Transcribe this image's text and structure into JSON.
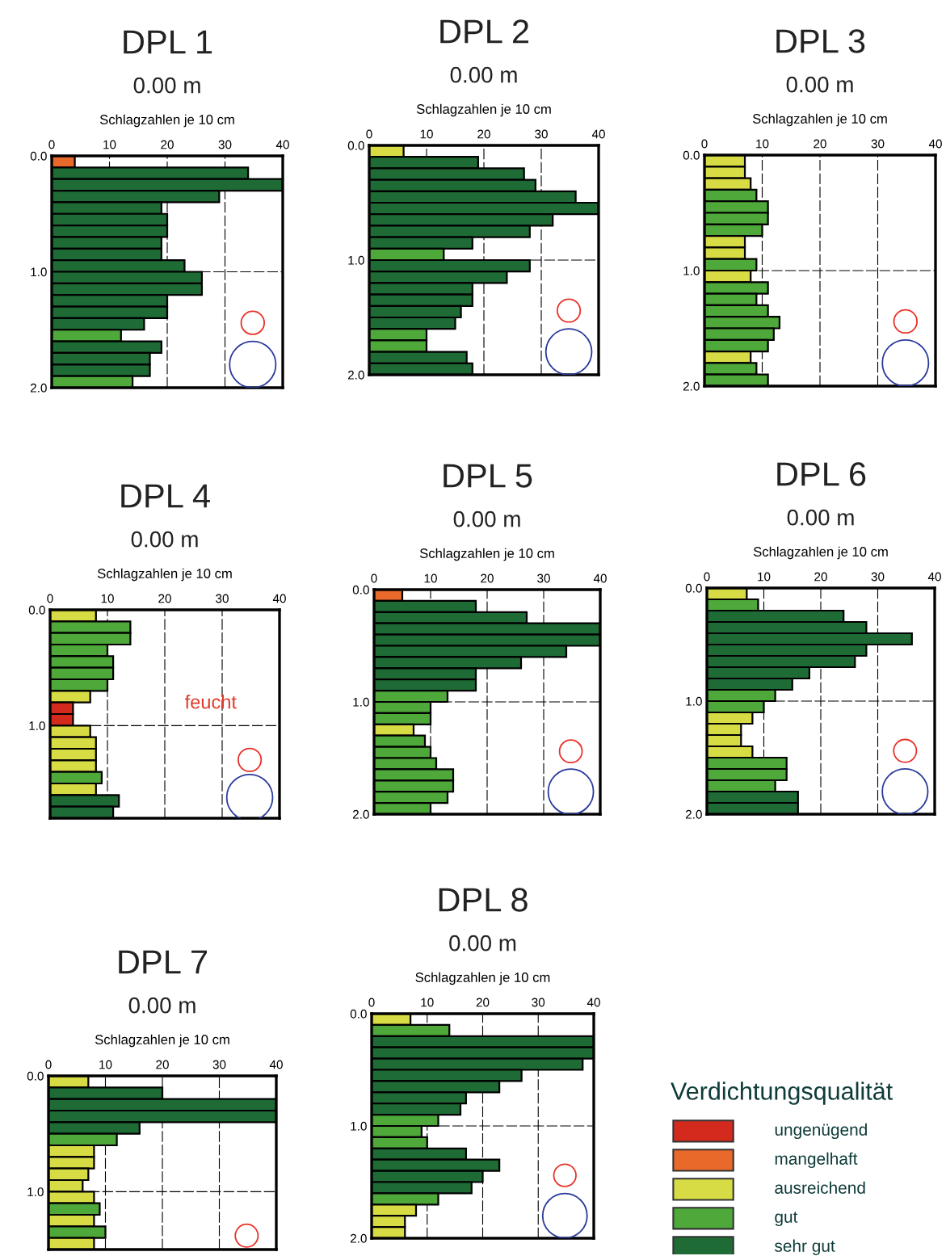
{
  "chart_data": [
    {
      "type": "bar",
      "orientation": "horizontal",
      "title": "DPL 1",
      "subtitle": "0.00 m",
      "xlabel": "Schlagzahlen je 10 cm",
      "grid": true,
      "xlim": [
        0,
        40
      ],
      "xticks": [
        0,
        10,
        20,
        30,
        40
      ],
      "ylim": [
        2.0,
        0.0
      ],
      "yticks": [
        {
          "value": 0,
          "label": "0.0"
        },
        {
          "value": 1,
          "label": "1.0"
        },
        {
          "value": 2,
          "label": "2.0"
        }
      ],
      "x": [
        0.05,
        0.15,
        0.25,
        0.35,
        0.45,
        0.55,
        0.65,
        0.75,
        0.85,
        0.95,
        1.05,
        1.15,
        1.25,
        1.35,
        1.45,
        1.55,
        1.65,
        1.75,
        1.85,
        1.95
      ],
      "values": [
        4,
        34,
        40,
        29,
        19,
        20,
        20,
        19,
        19,
        23,
        26,
        26,
        20,
        20,
        16,
        12,
        19,
        17,
        17,
        14
      ],
      "colors": [
        "#e8692a",
        "#1f6b35",
        "#1f6b35",
        "#1f6b35",
        "#1f6b35",
        "#1f6b35",
        "#1f6b35",
        "#1f6b35",
        "#1f6b35",
        "#1f6b35",
        "#1f6b35",
        "#1f6b35",
        "#1f6b35",
        "#1f6b35",
        "#1f6b35",
        "#4ea83a",
        "#1f6b35",
        "#1f6b35",
        "#1f6b35",
        "#4ea83a"
      ]
    },
    {
      "type": "bar",
      "orientation": "horizontal",
      "title": "DPL 2",
      "subtitle": "0.00 m",
      "xlabel": "Schlagzahlen je 10 cm",
      "grid": true,
      "xlim": [
        0,
        40
      ],
      "xticks": [
        0,
        10,
        20,
        30,
        40
      ],
      "ylim": [
        2.0,
        0.0
      ],
      "yticks": [
        {
          "value": 0,
          "label": "0.0"
        },
        {
          "value": 1,
          "label": "1.0"
        },
        {
          "value": 2,
          "label": "2.0"
        }
      ],
      "x": [
        0.05,
        0.15,
        0.25,
        0.35,
        0.45,
        0.55,
        0.65,
        0.75,
        0.85,
        0.95,
        1.05,
        1.15,
        1.25,
        1.35,
        1.45,
        1.55,
        1.65,
        1.75,
        1.85,
        1.95
      ],
      "values": [
        6,
        19,
        27,
        29,
        36,
        40,
        32,
        28,
        18,
        13,
        28,
        24,
        18,
        18,
        16,
        15,
        10,
        10,
        17,
        18
      ],
      "colors": [
        "#d8dc44",
        "#1f6b35",
        "#1f6b35",
        "#1f6b35",
        "#1f6b35",
        "#1f6b35",
        "#1f6b35",
        "#1f6b35",
        "#1f6b35",
        "#4ea83a",
        "#1f6b35",
        "#1f6b35",
        "#1f6b35",
        "#1f6b35",
        "#1f6b35",
        "#1f6b35",
        "#4ea83a",
        "#4ea83a",
        "#1f6b35",
        "#1f6b35"
      ]
    },
    {
      "type": "bar",
      "orientation": "horizontal",
      "title": "DPL 3",
      "subtitle": "0.00 m",
      "xlabel": "Schlagzahlen je 10 cm",
      "grid": true,
      "xlim": [
        0,
        40
      ],
      "xticks": [
        0,
        10,
        20,
        30,
        40
      ],
      "ylim": [
        2.0,
        0.0
      ],
      "yticks": [
        {
          "value": 0,
          "label": "0.0"
        },
        {
          "value": 1,
          "label": "1.0"
        },
        {
          "value": 2,
          "label": "2.0"
        }
      ],
      "x": [
        0.05,
        0.15,
        0.25,
        0.35,
        0.45,
        0.55,
        0.65,
        0.75,
        0.85,
        0.95,
        1.05,
        1.15,
        1.25,
        1.35,
        1.45,
        1.55,
        1.65,
        1.75,
        1.85,
        1.95
      ],
      "values": [
        7,
        7,
        8,
        9,
        11,
        11,
        10,
        7,
        7,
        9,
        8,
        11,
        9,
        11,
        13,
        12,
        11,
        8,
        9,
        11
      ],
      "colors": [
        "#d8dc44",
        "#d8dc44",
        "#d8dc44",
        "#4ea83a",
        "#4ea83a",
        "#4ea83a",
        "#4ea83a",
        "#d8dc44",
        "#d8dc44",
        "#4ea83a",
        "#d8dc44",
        "#4ea83a",
        "#4ea83a",
        "#4ea83a",
        "#4ea83a",
        "#4ea83a",
        "#4ea83a",
        "#d8dc44",
        "#4ea83a",
        "#4ea83a"
      ]
    },
    {
      "type": "bar",
      "orientation": "horizontal",
      "title": "DPL 4",
      "subtitle": "0.00 m",
      "xlabel": "Schlagzahlen je 10 cm",
      "grid": true,
      "annotations": [
        "feucht"
      ],
      "xlim": [
        0,
        40
      ],
      "xticks": [
        0,
        10,
        20,
        30,
        40
      ],
      "ylim": [
        1.8,
        0.0
      ],
      "yticks": [
        {
          "value": 0,
          "label": "0.0"
        },
        {
          "value": 1,
          "label": "1.0"
        }
      ],
      "x": [
        0.05,
        0.15,
        0.25,
        0.35,
        0.45,
        0.55,
        0.65,
        0.75,
        0.85,
        0.95,
        1.05,
        1.15,
        1.25,
        1.35,
        1.45,
        1.55,
        1.65,
        1.75
      ],
      "values": [
        8,
        14,
        14,
        10,
        11,
        11,
        10,
        7,
        4,
        4,
        7,
        8,
        8,
        8,
        9,
        8,
        12,
        11
      ],
      "colors": [
        "#d8dc44",
        "#4ea83a",
        "#4ea83a",
        "#4ea83a",
        "#4ea83a",
        "#4ea83a",
        "#4ea83a",
        "#d8dc44",
        "#d42a1e",
        "#d42a1e",
        "#d8dc44",
        "#d8dc44",
        "#d8dc44",
        "#d8dc44",
        "#4ea83a",
        "#d8dc44",
        "#1f6b35",
        "#1f6b35"
      ]
    },
    {
      "type": "bar",
      "orientation": "horizontal",
      "title": "DPL 5",
      "subtitle": "0.00 m",
      "xlabel": "Schlagzahlen je 10 cm",
      "grid": true,
      "xlim": [
        0,
        40
      ],
      "xticks": [
        0,
        10,
        20,
        30,
        40
      ],
      "ylim": [
        2.0,
        0.0
      ],
      "yticks": [
        {
          "value": 0,
          "label": "0.0"
        },
        {
          "value": 1,
          "label": "1.0"
        },
        {
          "value": 2,
          "label": "2.0"
        }
      ],
      "x": [
        0.05,
        0.15,
        0.25,
        0.35,
        0.45,
        0.55,
        0.65,
        0.75,
        0.85,
        0.95,
        1.05,
        1.15,
        1.25,
        1.35,
        1.45,
        1.55,
        1.65,
        1.75,
        1.85,
        1.95
      ],
      "values": [
        5,
        18,
        27,
        40,
        40,
        34,
        26,
        18,
        18,
        13,
        10,
        10,
        7,
        9,
        10,
        11,
        14,
        14,
        13,
        10
      ],
      "colors": [
        "#e8692a",
        "#1f6b35",
        "#1f6b35",
        "#1f6b35",
        "#1f6b35",
        "#1f6b35",
        "#1f6b35",
        "#1f6b35",
        "#1f6b35",
        "#4ea83a",
        "#4ea83a",
        "#4ea83a",
        "#d8dc44",
        "#4ea83a",
        "#4ea83a",
        "#4ea83a",
        "#4ea83a",
        "#4ea83a",
        "#4ea83a",
        "#4ea83a"
      ]
    },
    {
      "type": "bar",
      "orientation": "horizontal",
      "title": "DPL 6",
      "subtitle": "0.00 m",
      "xlabel": "Schlagzahlen je 10 cm",
      "grid": true,
      "xlim": [
        0,
        40
      ],
      "xticks": [
        0,
        10,
        20,
        30,
        40
      ],
      "ylim": [
        2.0,
        0.0
      ],
      "yticks": [
        {
          "value": 0,
          "label": "0.0"
        },
        {
          "value": 1,
          "label": "1.0"
        },
        {
          "value": 2,
          "label": "2.0"
        }
      ],
      "x": [
        0.05,
        0.15,
        0.25,
        0.35,
        0.45,
        0.55,
        0.65,
        0.75,
        0.85,
        0.95,
        1.05,
        1.15,
        1.25,
        1.35,
        1.45,
        1.55,
        1.65,
        1.75,
        1.85,
        1.95
      ],
      "values": [
        7,
        9,
        24,
        28,
        36,
        28,
        26,
        18,
        15,
        12,
        10,
        8,
        6,
        6,
        8,
        14,
        14,
        12,
        16,
        16
      ],
      "colors": [
        "#d8dc44",
        "#4ea83a",
        "#1f6b35",
        "#1f6b35",
        "#1f6b35",
        "#1f6b35",
        "#1f6b35",
        "#1f6b35",
        "#1f6b35",
        "#4ea83a",
        "#4ea83a",
        "#d8dc44",
        "#d8dc44",
        "#d8dc44",
        "#d8dc44",
        "#4ea83a",
        "#4ea83a",
        "#4ea83a",
        "#1f6b35",
        "#1f6b35"
      ]
    },
    {
      "type": "bar",
      "orientation": "horizontal",
      "title": "DPL 7",
      "subtitle": "0.00 m",
      "xlabel": "Schlagzahlen je 10 cm",
      "grid": true,
      "xlim": [
        0,
        40
      ],
      "xticks": [
        0,
        10,
        20,
        30,
        40
      ],
      "ylim": [
        1.5,
        0.0
      ],
      "yticks": [
        {
          "value": 0,
          "label": "0.0"
        },
        {
          "value": 1,
          "label": "1.0"
        }
      ],
      "x": [
        0.05,
        0.15,
        0.25,
        0.35,
        0.45,
        0.55,
        0.65,
        0.75,
        0.85,
        0.95,
        1.05,
        1.15,
        1.25,
        1.35,
        1.45
      ],
      "values": [
        7,
        20,
        40,
        40,
        16,
        12,
        8,
        8,
        7,
        6,
        8,
        9,
        8,
        10,
        8
      ],
      "colors": [
        "#d8dc44",
        "#1f6b35",
        "#1f6b35",
        "#1f6b35",
        "#1f6b35",
        "#4ea83a",
        "#d8dc44",
        "#d8dc44",
        "#d8dc44",
        "#d8dc44",
        "#d8dc44",
        "#4ea83a",
        "#d8dc44",
        "#4ea83a",
        "#d8dc44"
      ]
    },
    {
      "type": "bar",
      "orientation": "horizontal",
      "title": "DPL 8",
      "subtitle": "0.00 m",
      "xlabel": "Schlagzahlen je 10 cm",
      "grid": true,
      "xlim": [
        0,
        40
      ],
      "xticks": [
        0,
        10,
        20,
        30,
        40
      ],
      "ylim": [
        2.0,
        0.0
      ],
      "yticks": [
        {
          "value": 0,
          "label": "0.0"
        },
        {
          "value": 1,
          "label": "1.0"
        },
        {
          "value": 2,
          "label": "2.0"
        }
      ],
      "x": [
        0.05,
        0.15,
        0.25,
        0.35,
        0.45,
        0.55,
        0.65,
        0.75,
        0.85,
        0.95,
        1.05,
        1.15,
        1.25,
        1.35,
        1.45,
        1.55,
        1.65,
        1.75,
        1.85,
        1.95
      ],
      "values": [
        7,
        14,
        40,
        40,
        38,
        27,
        23,
        17,
        16,
        12,
        9,
        10,
        17,
        23,
        20,
        18,
        12,
        8,
        6,
        6
      ],
      "colors": [
        "#d8dc44",
        "#4ea83a",
        "#1f6b35",
        "#1f6b35",
        "#1f6b35",
        "#1f6b35",
        "#1f6b35",
        "#1f6b35",
        "#1f6b35",
        "#4ea83a",
        "#4ea83a",
        "#4ea83a",
        "#1f6b35",
        "#1f6b35",
        "#1f6b35",
        "#1f6b35",
        "#4ea83a",
        "#d8dc44",
        "#d8dc44",
        "#d8dc44"
      ]
    },
    {
      "type": "other",
      "title": "Verdichtungsqualität",
      "categories": [
        "ungenügend",
        "mangelhaft",
        "ausreichend",
        "gut",
        "sehr gut"
      ],
      "colors": [
        "#d42a1e",
        "#e8692a",
        "#d8dc44",
        "#4ea83a",
        "#1f6b35"
      ]
    }
  ]
}
